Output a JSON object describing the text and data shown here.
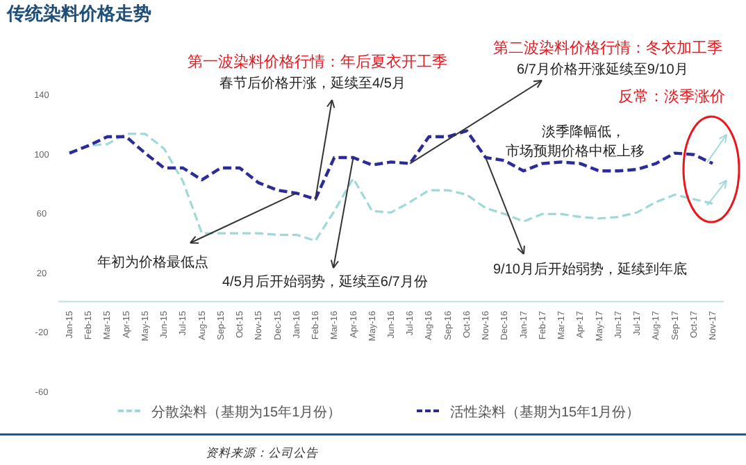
{
  "chart_data": {
    "type": "line",
    "title": "传统染料价格走势",
    "categories": [
      "Jan-15",
      "Feb-15",
      "Mar-15",
      "Apr-15",
      "May-15",
      "Jun-15",
      "Jul-15",
      "Aug-15",
      "Sep-15",
      "Oct-15",
      "Nov-15",
      "Dec-15",
      "Jan-16",
      "Feb-16",
      "Mar-16",
      "Apr-16",
      "May-16",
      "Jun-16",
      "Jul-16",
      "Aug-16",
      "Sep-16",
      "Oct-16",
      "Nov-16",
      "Dec-16",
      "Jan-17",
      "Feb-17",
      "Mar-17",
      "Apr-17",
      "May-17",
      "Jun-17",
      "Jul-17",
      "Aug-17",
      "Sep-17",
      "Oct-17",
      "Nov-17"
    ],
    "series": [
      {
        "name": "分散染料（基期为15年1月份）",
        "color": "#9fd8d8",
        "values": [
          100,
          105,
          106,
          113,
          113,
          103,
          81,
          46,
          46,
          46,
          46,
          45,
          45,
          41,
          61,
          83,
          61,
          60,
          67,
          75,
          75,
          72,
          63,
          59,
          54,
          59,
          59,
          57,
          56,
          57,
          60,
          67,
          72,
          69,
          66
        ]
      },
      {
        "name": "活性染料（基期为15年1月份）",
        "color": "#2b2b9a",
        "values": [
          100,
          105,
          111,
          111,
          100,
          90,
          90,
          82,
          90,
          90,
          80,
          75,
          73,
          69,
          97,
          97,
          92,
          94,
          93,
          111,
          111,
          115,
          97,
          95,
          88,
          93,
          94,
          93,
          88,
          88,
          89,
          93,
          100,
          99,
          93
        ]
      }
    ],
    "ylim": [
      -60,
      140
    ],
    "yticks": [
      -60,
      -20,
      20,
      60,
      100,
      140
    ],
    "grid": false,
    "legend": "bottom",
    "line_style": "dashed",
    "marker": "none",
    "annotations": [
      "第一波染料价格行情：年后夏衣开工季",
      {
        "text": "春节后价格开涨，延续至4/5月",
        "x": "Feb-16",
        "y": 69
      },
      "第二波染料价格行情：冬衣加工季",
      {
        "text": "6/7月价格开涨延续至9/10月",
        "x": "Jul-16",
        "y": 93
      },
      "反常：淡季涨价",
      "淡季降幅低，",
      "市场预期价格中枢上移",
      {
        "text": "年初为价格最低点",
        "x": "Jan-16",
        "y": 73
      },
      {
        "text": "4/5月后开始弱势，延续至6/7月份",
        "x": "Apr-16",
        "y": 97
      },
      {
        "text": "9/10月后开始弱势，延续到年底",
        "x": "Nov-16",
        "y": 97
      },
      "资料来源：公司公告"
    ]
  }
}
